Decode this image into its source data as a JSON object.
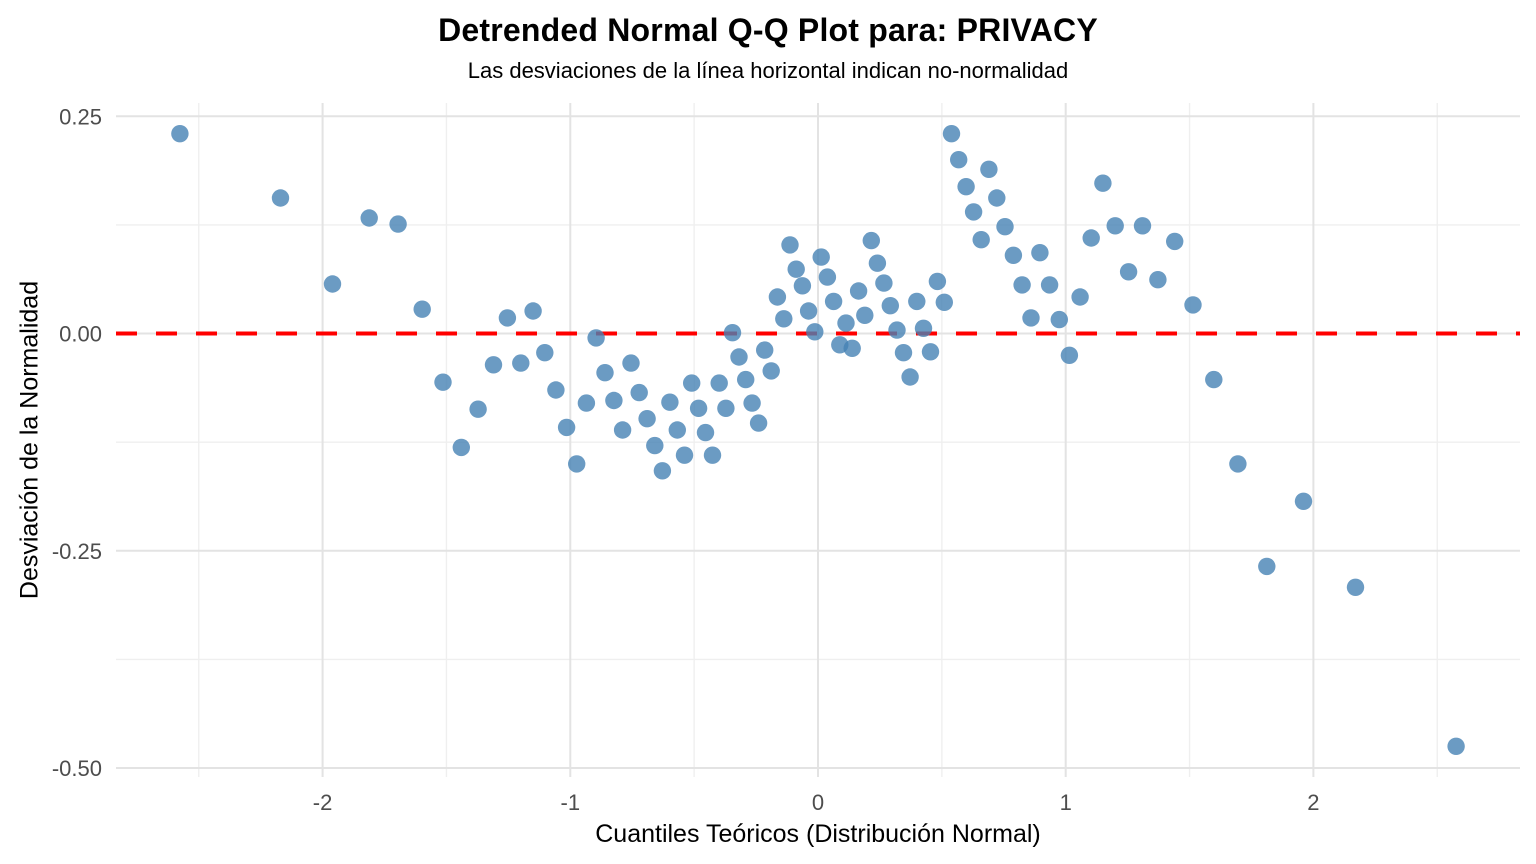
{
  "chart_data": {
    "type": "scatter",
    "title": "Detrended Normal Q-Q Plot para: PRIVACY",
    "subtitle": "Las desviaciones de la línea horizontal indican no-normalidad",
    "xlabel": "Cuantiles Teóricos (Distribución Normal)",
    "ylabel": "Desviación de la Normalidad",
    "x": [
      -2.576,
      -2.17,
      -1.96,
      -1.812,
      -1.695,
      -1.598,
      -1.514,
      -1.44,
      -1.372,
      -1.31,
      -1.254,
      -1.2,
      -1.15,
      -1.103,
      -1.058,
      -1.015,
      -0.974,
      -0.935,
      -0.896,
      -0.86,
      -0.824,
      -0.789,
      -0.755,
      -0.722,
      -0.69,
      -0.659,
      -0.628,
      -0.598,
      -0.568,
      -0.539,
      -0.51,
      -0.482,
      -0.454,
      -0.426,
      -0.399,
      -0.372,
      -0.345,
      -0.319,
      -0.292,
      -0.266,
      -0.24,
      -0.215,
      -0.189,
      -0.164,
      -0.138,
      -0.113,
      -0.088,
      -0.063,
      -0.038,
      -0.013,
      0.013,
      0.038,
      0.063,
      0.088,
      0.113,
      0.138,
      0.164,
      0.189,
      0.215,
      0.24,
      0.266,
      0.292,
      0.319,
      0.345,
      0.372,
      0.399,
      0.426,
      0.454,
      0.482,
      0.51,
      0.539,
      0.568,
      0.598,
      0.628,
      0.659,
      0.69,
      0.722,
      0.755,
      0.789,
      0.824,
      0.86,
      0.896,
      0.935,
      0.974,
      1.015,
      1.058,
      1.103,
      1.15,
      1.2,
      1.254,
      1.31,
      1.372,
      1.44,
      1.514,
      1.598,
      1.695,
      1.812,
      1.96,
      2.17,
      2.576
    ],
    "y": [
      0.23,
      0.156,
      0.057,
      0.133,
      0.126,
      0.028,
      -0.056,
      -0.131,
      -0.087,
      -0.036,
      0.018,
      -0.034,
      0.026,
      -0.022,
      -0.065,
      -0.108,
      -0.15,
      -0.08,
      -0.005,
      -0.045,
      -0.077,
      -0.111,
      -0.034,
      -0.068,
      -0.098,
      -0.129,
      -0.158,
      -0.079,
      -0.111,
      -0.14,
      -0.057,
      -0.086,
      -0.114,
      -0.14,
      -0.057,
      -0.086,
      0.001,
      -0.027,
      -0.053,
      -0.08,
      -0.103,
      -0.019,
      -0.043,
      0.042,
      0.017,
      0.102,
      0.074,
      0.055,
      0.026,
      0.002,
      0.088,
      0.065,
      0.037,
      -0.013,
      0.012,
      -0.017,
      0.049,
      0.021,
      0.107,
      0.081,
      0.058,
      0.032,
      0.004,
      -0.022,
      -0.05,
      0.037,
      0.006,
      -0.021,
      0.06,
      0.036,
      0.23,
      0.2,
      0.169,
      0.14,
      0.108,
      0.189,
      0.156,
      0.123,
      0.09,
      0.056,
      0.018,
      0.093,
      0.056,
      0.016,
      -0.025,
      0.042,
      0.11,
      0.173,
      0.124,
      0.071,
      0.124,
      0.062,
      0.106,
      0.033,
      -0.053,
      -0.15,
      -0.268,
      -0.193,
      -0.292,
      -0.475
    ],
    "x_ticks": [
      -2,
      -1,
      0,
      1,
      2
    ],
    "x_tick_labels": [
      "-2",
      "-1",
      "0",
      "1",
      "2"
    ],
    "y_ticks": [
      0.25,
      0.0,
      -0.25,
      -0.5
    ],
    "y_tick_labels": [
      "0.25",
      "0.00",
      "-0.25",
      "-0.50"
    ],
    "x_minor_ticks": [
      -2.5,
      -1.5,
      -0.5,
      0.5,
      1.5,
      2.5
    ],
    "y_minor_ticks": [
      0.125,
      -0.125,
      -0.375
    ],
    "xlim": [
      -2.834,
      2.834
    ],
    "ylim": [
      -0.5103,
      0.2653
    ],
    "reference_line": {
      "y": 0,
      "style": "dashed",
      "color": "#FF0000"
    },
    "grid": "on",
    "legend": "none",
    "colors": {
      "point_fill": "#4682B4",
      "point_opacity": 0.8,
      "reference_red": "#FF0000",
      "grid_major": "#E3E3E3",
      "grid_minor": "#EFEFEF",
      "tick_text": "#4D4D4D",
      "title_text": "#000000",
      "background": "#FFFFFF"
    }
  }
}
